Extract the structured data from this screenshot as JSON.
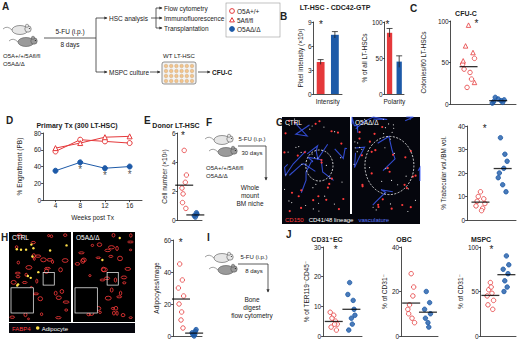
{
  "legend": [
    {
      "name": "O5A+/+",
      "color": "#e5393b",
      "marker": "circle_open"
    },
    {
      "name": "5Afl/fl",
      "color": "#e5393b",
      "marker": "triangle_open"
    },
    {
      "name": "O5AΔ/Δ",
      "color": "#1d5aa8",
      "marker": "circle"
    }
  ],
  "diagrams": [
    {
      "panel": "A",
      "mice": [
        "O5A+/+/5Afl/fl",
        "O5AΔ/Δ"
      ],
      "treatment": "5-FU (i.p.)",
      "duration": "8 days",
      "branch1": "HSC analysis",
      "outputs1": [
        "Flow cytometry",
        "Immunofluorescence",
        "Transplantation"
      ],
      "branch2": "MSPC culture",
      "coculture": "WT LT-HSC",
      "output2": "CFU-C"
    },
    {
      "panel": "F",
      "mice": [
        "O5A+/+/5Afl/fl",
        "O5AΔ/Δ"
      ],
      "treatment": "5-FU (i.p.)",
      "duration": "30 days",
      "output": [
        "Whole",
        "mount",
        "BM niche"
      ]
    },
    {
      "panel": "I",
      "treatment": "5-FU (i.p.)",
      "duration": "8 days",
      "output": [
        "Bone",
        "digest",
        "flow cytometry"
      ]
    }
  ],
  "images": [
    {
      "panel": "G",
      "labels": [
        "CTRL",
        "O5AΔ/Δ"
      ],
      "stain_legend": [
        {
          "text": "CD150",
          "color": "#ff3b3b"
        },
        {
          "text": "CD41/48 lineage",
          "color": "#ffffff"
        },
        {
          "text": "vasculature",
          "color": "#5b78ff"
        }
      ]
    },
    {
      "panel": "H",
      "labels": [
        "CTRL",
        "O5AΔ/Δ"
      ],
      "stain_legend": [
        {
          "text": "FABP4",
          "color": "#ff3b3b"
        },
        {
          "text": "Adipocyte",
          "color": "#ffe04a",
          "marker": "circle"
        }
      ]
    }
  ],
  "chart_data": [
    {
      "panel": "B",
      "title": "LT-HSC - CDC42-GTP",
      "type": "bar",
      "categories": [
        null,
        null
      ],
      "values": [
        4.0,
        7.4
      ],
      "errors": [
        0.3,
        0.4
      ],
      "colors": [
        "#e5393b",
        "#1d5aa8"
      ],
      "xlabel": "Intensity",
      "ylabel": "Pixel intensity (×10³)",
      "ylim": [
        0,
        9
      ],
      "yticks": [
        0,
        3,
        6,
        9
      ],
      "annotations": [
        "*"
      ],
      "tick_labels": "y",
      "grid": false
    },
    {
      "type": "bar",
      "categories": [
        null,
        null
      ],
      "values": [
        85,
        45
      ],
      "errors": [
        6,
        8
      ],
      "colors": [
        "#e5393b",
        "#1d5aa8"
      ],
      "xlabel": "Polarity",
      "ylabel": "% of all LT-HSCs",
      "ylim": [
        0,
        100
      ],
      "yticks": [
        0,
        50,
        100
      ],
      "annotations": [
        "*"
      ],
      "tick_labels": "y",
      "grid": false
    },
    {
      "panel": "C",
      "title": "CFU-C",
      "type": "scatter",
      "ylabel": "Colonies/60 LT-HSCs",
      "xlim": [
        -0.6,
        1.6
      ],
      "ylim": [
        0,
        100
      ],
      "yticks": [
        0,
        50,
        100
      ],
      "series": [
        {
          "name": "O5A+/+",
          "color": "#e5393b",
          "marker": "circle_open",
          "values": [
            [
              -0.15,
              42
            ],
            [
              0.1,
              30
            ],
            [
              0.2,
              55
            ],
            [
              -0.05,
              20
            ],
            [
              0.05,
              38
            ],
            [
              -0.2,
              48
            ]
          ]
        },
        {
          "name": "5Afl/fl",
          "color": "#e5393b",
          "marker": "triangle_open",
          "values": [
            [
              0.0,
              95
            ],
            [
              0.15,
              62
            ],
            [
              -0.1,
              70
            ],
            [
              0.2,
              26
            ],
            [
              -0.18,
              52
            ]
          ]
        },
        {
          "name": "O5AΔ/Δ",
          "color": "#1d5aa8",
          "marker": "circle",
          "values": [
            [
              0.85,
              3
            ],
            [
              1.0,
              6
            ],
            [
              1.15,
              2
            ],
            [
              0.9,
              8
            ],
            [
              1.1,
              4
            ],
            [
              1.2,
              5
            ],
            [
              0.8,
              1
            ]
          ]
        }
      ],
      "means": [
        [
          0,
          45
        ],
        [
          1,
          4
        ]
      ],
      "annotations": [
        "*"
      ],
      "tick_labels": "y",
      "grid": false
    },
    {
      "panel": "D",
      "title": "Primary Tx (300 LT-HSC)",
      "type": "line",
      "x": [
        4,
        8,
        12,
        16
      ],
      "xlim": [
        2,
        18
      ],
      "xticks": [
        4,
        8,
        12,
        16
      ],
      "xlabel": "Weeks post Tx",
      "ylabel": "% Engraftment (PB)",
      "ylim": [
        0,
        80
      ],
      "yticks": [
        0,
        20,
        40,
        60,
        80
      ],
      "series": [
        {
          "name": "O5A+/+",
          "color": "#e5393b",
          "marker": "circle_open",
          "values": [
            58,
            72,
            70,
            68
          ]
        },
        {
          "name": "5Afl/fl",
          "color": "#e5393b",
          "marker": "triangle_open",
          "values": [
            62,
            68,
            75,
            76
          ]
        },
        {
          "name": "O5AΔ/Δ",
          "color": "#1d5aa8",
          "marker": "circle",
          "values": [
            35,
            45,
            38,
            40
          ]
        }
      ],
      "annotations": [
        {
          "x": 8,
          "y": 36,
          "text": "*"
        },
        {
          "x": 12,
          "y": 29,
          "text": "*"
        },
        {
          "x": 16,
          "y": 31,
          "text": "*"
        }
      ],
      "grid": false
    },
    {
      "panel": "E",
      "title": "Donor LT-HSC",
      "type": "scatter",
      "ylabel": "Cell number (×10²)",
      "xlim": [
        -0.6,
        1.6
      ],
      "ylim": [
        0,
        6
      ],
      "yticks": [
        0,
        2,
        4,
        6
      ],
      "series": [
        {
          "name": "O5A+/+",
          "color": "#e5393b",
          "marker": "circle_open",
          "values": [
            [
              -0.15,
              1.2
            ],
            [
              0.1,
              2.6
            ],
            [
              0,
              4.8
            ],
            [
              0.2,
              3.1
            ],
            [
              -0.1,
              1.8
            ],
            [
              0.15,
              0.8
            ],
            [
              -0.2,
              2.2
            ]
          ]
        },
        {
          "name": "O5AΔ/Δ",
          "color": "#1d5aa8",
          "marker": "circle",
          "values": [
            [
              0.9,
              0.3
            ],
            [
              1.1,
              0.5
            ],
            [
              1,
              0.2
            ],
            [
              1.15,
              0.4
            ]
          ]
        }
      ],
      "means": [
        [
          0,
          2.4
        ],
        [
          1,
          0.35
        ]
      ],
      "annotations": [
        "*"
      ],
      "tick_labels": "y",
      "grid": false
    },
    {
      "type": "scatter",
      "ylabel": "% Trabecular vol./BM vol.",
      "xlim": [
        -0.6,
        1.6
      ],
      "ylim": [
        0,
        40
      ],
      "yticks": [
        0,
        10,
        20,
        30,
        40
      ],
      "series": [
        {
          "name": "O5A+/+",
          "color": "#e5393b",
          "marker": "circle_open",
          "values": [
            [
              -0.15,
              8
            ],
            [
              0.1,
              5
            ],
            [
              0,
              12
            ],
            [
              0.2,
              7
            ],
            [
              -0.1,
              10
            ],
            [
              0.05,
              4
            ],
            [
              -0.2,
              6
            ],
            [
              0.15,
              9
            ]
          ]
        },
        {
          "name": "O5AΔ/Δ",
          "color": "#1d5aa8",
          "marker": "circle",
          "values": [
            [
              0.85,
              20
            ],
            [
              1.1,
              28
            ],
            [
              1,
              15
            ],
            [
              0.9,
              35
            ],
            [
              1.15,
              12
            ],
            [
              1.05,
              22
            ],
            [
              0.8,
              18
            ],
            [
              1.2,
              25
            ]
          ]
        }
      ],
      "means": [
        [
          0,
          7.6
        ],
        [
          1,
          21.9
        ]
      ],
      "annotations": [
        "*"
      ],
      "tick_labels": "y",
      "grid": false
    },
    {
      "type": "scatter",
      "ylabel": "Adipocytes/image",
      "xlim": [
        -0.6,
        1.6
      ],
      "ylim": [
        0,
        60
      ],
      "yticks": [
        0,
        20,
        40,
        60
      ],
      "series": [
        {
          "name": "O5A+/+",
          "color": "#e5393b",
          "marker": "circle_open",
          "values": [
            [
              -0.15,
              20
            ],
            [
              0.1,
              35
            ],
            [
              0,
              10
            ],
            [
              0.2,
              25
            ],
            [
              -0.1,
              45
            ],
            [
              0.05,
              15
            ],
            [
              -0.2,
              30
            ],
            [
              0.15,
              5
            ]
          ]
        },
        {
          "name": "O5AΔ/Δ",
          "color": "#1d5aa8",
          "marker": "circle",
          "values": [
            [
              0.9,
              1
            ],
            [
              1.1,
              3
            ],
            [
              1,
              0
            ],
            [
              0.85,
              2
            ],
            [
              1.15,
              4
            ],
            [
              1.05,
              1
            ]
          ]
        }
      ],
      "means": [
        [
          0,
          23.1
        ],
        [
          1,
          1.8
        ]
      ],
      "annotations": [
        "*"
      ],
      "tick_labels": "y",
      "grid": false
    },
    {
      "panel": "J",
      "title": "CD31⁺EC",
      "type": "scatter",
      "ylabel": "% of TER119⁻CD45⁻",
      "xlim": [
        -0.6,
        1.6
      ],
      "ylim": [
        0,
        30
      ],
      "yticks": [
        0,
        10,
        20,
        30
      ],
      "series": [
        {
          "name": "O5A+/+",
          "color": "#e5393b",
          "marker": "circle_open",
          "values": [
            [
              -0.15,
              3
            ],
            [
              0.1,
              5
            ],
            [
              0,
              7
            ],
            [
              0.2,
              4
            ],
            [
              -0.1,
              6
            ],
            [
              0.15,
              2
            ],
            [
              -0.2,
              8
            ],
            [
              0.05,
              4
            ]
          ]
        },
        {
          "name": "O5AΔ/Δ",
          "color": "#1d5aa8",
          "marker": "circle",
          "values": [
            [
              0.85,
              2
            ],
            [
              1.1,
              12
            ],
            [
              1,
              6
            ],
            [
              0.9,
              18
            ],
            [
              1.15,
              9
            ],
            [
              1.05,
              4
            ],
            [
              0.8,
              14
            ],
            [
              1.2,
              7
            ]
          ]
        }
      ],
      "means": [
        [
          0,
          4.9
        ],
        [
          1,
          9
        ]
      ],
      "annotations": [
        "*"
      ],
      "tick_labels": "y",
      "grid": false
    },
    {
      "title": "OBC",
      "type": "scatter",
      "ylabel": "% of CD31⁻",
      "xlim": [
        -0.6,
        1.6
      ],
      "ylim": [
        0,
        40
      ],
      "yticks": [
        0,
        20,
        40
      ],
      "series": [
        {
          "name": "O5A+/+",
          "color": "#e5393b",
          "marker": "circle_open",
          "values": [
            [
              -0.15,
              10
            ],
            [
              0.1,
              18
            ],
            [
              0,
              28
            ],
            [
              0.2,
              6
            ],
            [
              -0.1,
              14
            ],
            [
              0.15,
              22
            ],
            [
              -0.2,
              12
            ],
            [
              0.05,
              8
            ]
          ]
        },
        {
          "name": "O5AΔ/Δ",
          "color": "#1d5aa8",
          "marker": "circle",
          "values": [
            [
              0.85,
              8
            ],
            [
              1.1,
              15
            ],
            [
              1,
              6
            ],
            [
              0.9,
              20
            ],
            [
              1.15,
              10
            ],
            [
              1.05,
              4
            ],
            [
              0.8,
              12
            ]
          ]
        }
      ],
      "means": [
        [
          0,
          14.8
        ],
        [
          1,
          10.7
        ]
      ],
      "tick_labels": "y",
      "grid": false
    },
    {
      "title": "MSPC",
      "type": "scatter",
      "ylabel": "% of CD31⁻",
      "xlim": [
        -0.6,
        1.6
      ],
      "ylim": [
        0,
        100
      ],
      "yticks": [
        0,
        50,
        100
      ],
      "series": [
        {
          "name": "O5A+/+",
          "color": "#e5393b",
          "marker": "circle_open",
          "values": [
            [
              -0.15,
              35
            ],
            [
              0.1,
              48
            ],
            [
              0,
              60
            ],
            [
              0.2,
              40
            ],
            [
              -0.1,
              52
            ],
            [
              0.15,
              30
            ],
            [
              -0.2,
              45
            ],
            [
              0.05,
              55
            ]
          ]
        },
        {
          "name": "O5AΔ/Δ",
          "color": "#1d5aa8",
          "marker": "circle",
          "values": [
            [
              0.85,
              50
            ],
            [
              1.1,
              70
            ],
            [
              1,
              90
            ],
            [
              0.9,
              62
            ],
            [
              1.15,
              80
            ],
            [
              1.05,
              55
            ],
            [
              0.8,
              75
            ]
          ]
        }
      ],
      "means": [
        [
          0,
          45.6
        ],
        [
          1,
          68.9
        ]
      ],
      "annotations": [
        "*"
      ],
      "tick_labels": "y",
      "grid": false
    }
  ]
}
